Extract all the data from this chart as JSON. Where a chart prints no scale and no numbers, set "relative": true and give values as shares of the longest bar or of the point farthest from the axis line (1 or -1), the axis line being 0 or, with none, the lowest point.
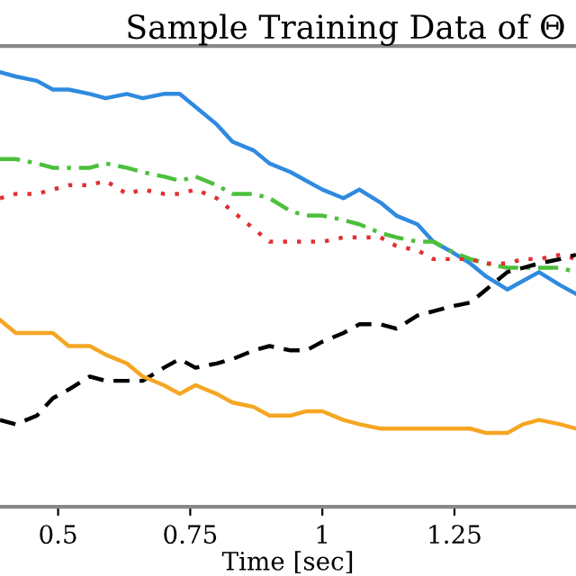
{
  "chart_data": {
    "type": "line",
    "title": "Sample Training Data of Θ",
    "xlabel": "Time [sec]",
    "relative": true,
    "x": [
      0.39,
      0.42,
      0.46,
      0.49,
      0.52,
      0.56,
      0.59,
      0.63,
      0.66,
      0.7,
      0.73,
      0.76,
      0.8,
      0.83,
      0.87,
      0.9,
      0.94,
      0.97,
      1.0,
      1.04,
      1.07,
      1.11,
      1.14,
      1.18,
      1.21,
      1.24,
      1.28,
      1.31,
      1.35,
      1.38,
      1.41,
      1.45,
      1.48
    ],
    "xlim": [
      0.39,
      1.48
    ],
    "xticks": [
      0.5,
      0.75,
      1,
      1.25
    ],
    "grid": false,
    "series": [
      {
        "color": "#2f8ae0",
        "line_style": "solid",
        "values": [
          1.0,
          0.99,
          0.98,
          0.96,
          0.96,
          0.95,
          0.94,
          0.95,
          0.94,
          0.95,
          0.95,
          0.92,
          0.88,
          0.84,
          0.82,
          0.79,
          0.77,
          0.75,
          0.73,
          0.71,
          0.73,
          0.7,
          0.67,
          0.65,
          0.61,
          0.59,
          0.56,
          0.53,
          0.5,
          0.52,
          0.54,
          0.51,
          0.49
        ]
      },
      {
        "color": "#4cbf3c",
        "line_style": "dashdot",
        "values": [
          0.8,
          0.8,
          0.79,
          0.78,
          0.78,
          0.78,
          0.79,
          0.78,
          0.77,
          0.76,
          0.75,
          0.76,
          0.74,
          0.72,
          0.72,
          0.71,
          0.68,
          0.67,
          0.67,
          0.66,
          0.65,
          0.63,
          0.62,
          0.61,
          0.61,
          0.59,
          0.57,
          0.56,
          0.55,
          0.55,
          0.55,
          0.55,
          0.54
        ]
      },
      {
        "color": "#e03030",
        "line_style": "dotted",
        "values": [
          0.71,
          0.72,
          0.72,
          0.73,
          0.74,
          0.74,
          0.75,
          0.72,
          0.73,
          0.72,
          0.72,
          0.73,
          0.71,
          0.68,
          0.64,
          0.61,
          0.61,
          0.61,
          0.61,
          0.62,
          0.62,
          0.62,
          0.6,
          0.59,
          0.57,
          0.57,
          0.57,
          0.56,
          0.56,
          0.57,
          0.57,
          0.58,
          0.57
        ]
      },
      {
        "color": "#000000",
        "line_style": "dashed",
        "values": [
          0.2,
          0.19,
          0.21,
          0.25,
          0.27,
          0.3,
          0.29,
          0.29,
          0.29,
          0.32,
          0.34,
          0.32,
          0.33,
          0.34,
          0.36,
          0.37,
          0.36,
          0.36,
          0.38,
          0.4,
          0.42,
          0.42,
          0.41,
          0.44,
          0.45,
          0.46,
          0.47,
          0.5,
          0.54,
          0.55,
          0.56,
          0.57,
          0.58
        ]
      },
      {
        "color": "#f5a623",
        "line_style": "solid",
        "values": [
          0.43,
          0.4,
          0.4,
          0.4,
          0.37,
          0.37,
          0.35,
          0.33,
          0.3,
          0.28,
          0.26,
          0.28,
          0.26,
          0.24,
          0.23,
          0.21,
          0.21,
          0.22,
          0.22,
          0.2,
          0.19,
          0.18,
          0.18,
          0.18,
          0.18,
          0.18,
          0.18,
          0.17,
          0.17,
          0.19,
          0.2,
          0.19,
          0.18
        ]
      }
    ]
  }
}
